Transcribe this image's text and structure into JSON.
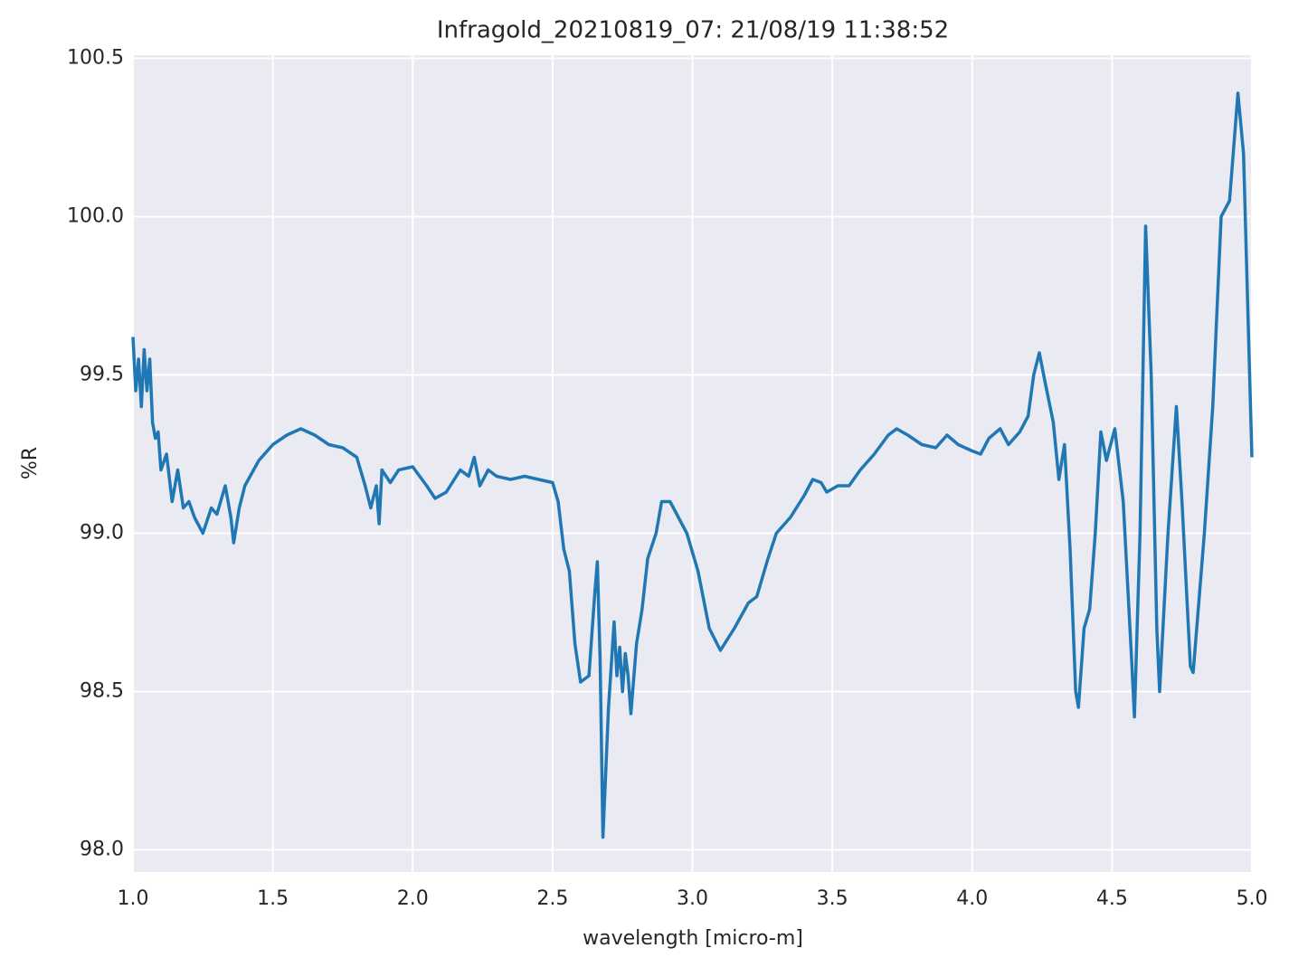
{
  "chart_data": {
    "type": "line",
    "title": "Infragold_20210819_07:  21/08/19 11:38:52",
    "x_label": "wavelength [micro-m]",
    "y_label": "%R",
    "x": [
      1.0,
      1.01,
      1.02,
      1.03,
      1.04,
      1.05,
      1.06,
      1.07,
      1.08,
      1.09,
      1.1,
      1.12,
      1.14,
      1.16,
      1.18,
      1.2,
      1.22,
      1.25,
      1.28,
      1.3,
      1.33,
      1.35,
      1.36,
      1.38,
      1.4,
      1.45,
      1.5,
      1.55,
      1.6,
      1.65,
      1.7,
      1.75,
      1.8,
      1.83,
      1.85,
      1.87,
      1.88,
      1.89,
      1.92,
      1.95,
      2.0,
      2.05,
      2.08,
      2.12,
      2.17,
      2.2,
      2.22,
      2.24,
      2.27,
      2.3,
      2.35,
      2.4,
      2.45,
      2.5,
      2.52,
      2.54,
      2.56,
      2.58,
      2.6,
      2.63,
      2.65,
      2.66,
      2.67,
      2.68,
      2.7,
      2.72,
      2.73,
      2.74,
      2.75,
      2.76,
      2.77,
      2.78,
      2.8,
      2.82,
      2.84,
      2.87,
      2.89,
      2.92,
      2.95,
      2.98,
      3.02,
      3.06,
      3.1,
      3.15,
      3.2,
      3.23,
      3.27,
      3.3,
      3.35,
      3.4,
      3.43,
      3.46,
      3.48,
      3.52,
      3.56,
      3.6,
      3.65,
      3.7,
      3.73,
      3.77,
      3.82,
      3.87,
      3.91,
      3.95,
      4.0,
      4.03,
      4.06,
      4.1,
      4.13,
      4.17,
      4.2,
      4.22,
      4.24,
      4.26,
      4.29,
      4.31,
      4.33,
      4.35,
      4.37,
      4.38,
      4.4,
      4.42,
      4.44,
      4.46,
      4.48,
      4.51,
      4.54,
      4.57,
      4.58,
      4.6,
      4.62,
      4.64,
      4.66,
      4.67,
      4.7,
      4.73,
      4.75,
      4.78,
      4.79,
      4.83,
      4.86,
      4.89,
      4.92,
      4.95,
      4.97,
      5.0
    ],
    "series": [
      {
        "name": "%R",
        "color": "#1f77b4",
        "values": [
          99.62,
          99.45,
          99.55,
          99.4,
          99.58,
          99.45,
          99.55,
          99.35,
          99.3,
          99.32,
          99.2,
          99.25,
          99.1,
          99.2,
          99.08,
          99.1,
          99.05,
          99.0,
          99.08,
          99.06,
          99.15,
          99.05,
          98.97,
          99.08,
          99.15,
          99.23,
          99.28,
          99.31,
          99.33,
          99.31,
          99.28,
          99.27,
          99.24,
          99.15,
          99.08,
          99.15,
          99.03,
          99.2,
          99.16,
          99.2,
          99.21,
          99.15,
          99.11,
          99.13,
          99.2,
          99.18,
          99.24,
          99.15,
          99.2,
          99.18,
          99.17,
          99.18,
          99.17,
          99.16,
          99.1,
          98.95,
          98.88,
          98.65,
          98.53,
          98.55,
          98.8,
          98.91,
          98.6,
          98.04,
          98.45,
          98.72,
          98.55,
          98.64,
          98.5,
          98.62,
          98.55,
          98.43,
          98.65,
          98.76,
          98.92,
          99.0,
          99.1,
          99.1,
          99.05,
          99.0,
          98.88,
          98.7,
          98.63,
          98.7,
          98.78,
          98.8,
          98.92,
          99.0,
          99.05,
          99.12,
          99.17,
          99.16,
          99.13,
          99.15,
          99.15,
          99.2,
          99.25,
          99.31,
          99.33,
          99.31,
          99.28,
          99.27,
          99.31,
          99.28,
          99.26,
          99.25,
          99.3,
          99.33,
          99.28,
          99.32,
          99.37,
          99.5,
          99.57,
          99.48,
          99.35,
          99.17,
          99.28,
          98.95,
          98.5,
          98.45,
          98.7,
          98.76,
          99.0,
          99.32,
          99.23,
          99.33,
          99.1,
          98.6,
          98.42,
          99.0,
          99.97,
          99.5,
          98.7,
          98.5,
          99.0,
          99.4,
          99.1,
          98.58,
          98.56,
          99.0,
          99.4,
          100.0,
          100.05,
          100.39,
          100.2,
          99.24
        ]
      }
    ],
    "xlim": [
      1.0,
      5.0
    ],
    "ylim": [
      97.93,
      100.51
    ],
    "xticks": [
      {
        "value": 1.0,
        "label": "1.0"
      },
      1.5,
      {
        "value": 2.0,
        "label": "2.0"
      },
      2.5,
      {
        "value": 3.0,
        "label": "3.0"
      },
      3.5,
      {
        "value": 4.0,
        "label": "4.0"
      },
      4.5,
      {
        "value": 5.0,
        "label": "5.0"
      }
    ],
    "yticks": [
      {
        "value": 98.0,
        "label": "98.0"
      },
      98.5,
      {
        "value": 99.0,
        "label": "99.0"
      },
      99.5,
      {
        "value": 100.0,
        "label": "100.0"
      },
      100.5
    ],
    "grid": true
  }
}
